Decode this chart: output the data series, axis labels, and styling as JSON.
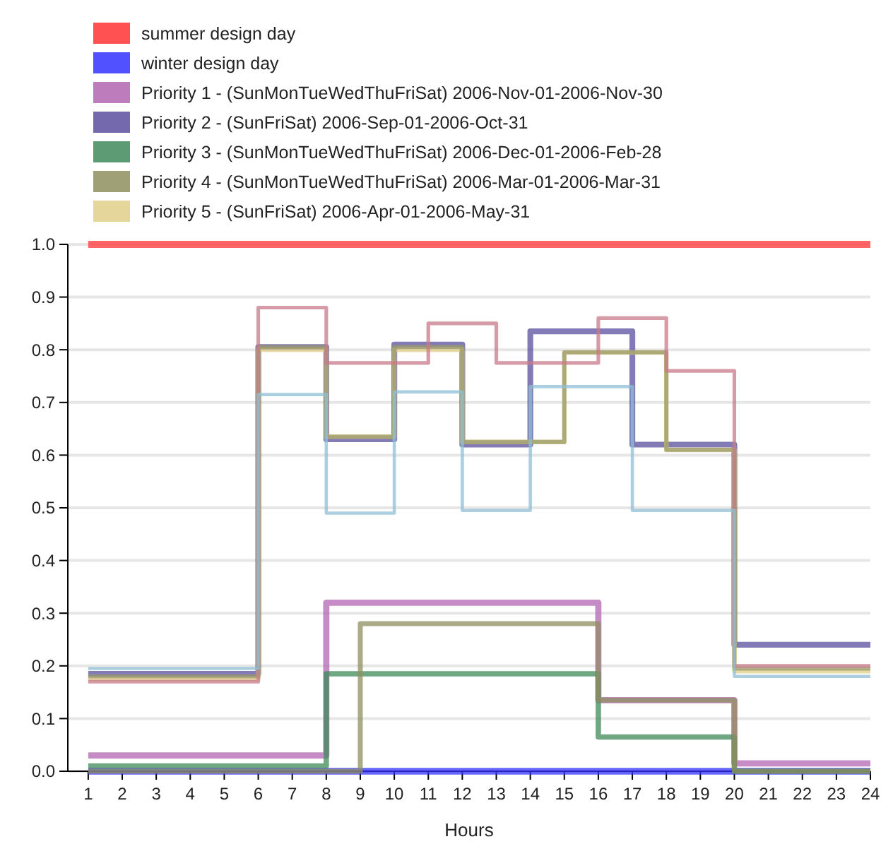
{
  "chart_data": {
    "type": "step",
    "xlabel": "Hours",
    "xlim": [
      0.4,
      24
    ],
    "xticks": [
      1,
      2,
      3,
      4,
      5,
      6,
      7,
      8,
      9,
      10,
      11,
      12,
      13,
      14,
      15,
      16,
      17,
      18,
      19,
      20,
      21,
      22,
      23,
      24
    ],
    "ylim": [
      0,
      1
    ],
    "yticks": [
      {
        "value": 0,
        "label": "0.0"
      },
      {
        "value": 0.1,
        "label": "0.1"
      },
      {
        "value": 0.2,
        "label": "0.2"
      },
      {
        "value": 0.3,
        "label": "0.3"
      },
      {
        "value": 0.4,
        "label": "0.4"
      },
      {
        "value": 0.5,
        "label": "0.5"
      },
      {
        "value": 0.6,
        "label": "0.6"
      },
      {
        "value": 0.7,
        "label": "0.7"
      },
      {
        "value": 0.8,
        "label": "0.8"
      },
      {
        "value": 0.9,
        "label": "0.9"
      },
      {
        "value": 1,
        "label": "1.0"
      }
    ],
    "grid": "y",
    "legend": "top left",
    "line_style": "solid",
    "series": [
      {
        "name": "summer design day",
        "color": "#ff3333",
        "x": [
          1,
          24
        ],
        "values": [
          1,
          1
        ]
      },
      {
        "name": "winter design day",
        "color": "#3333ff",
        "x": [
          1,
          24
        ],
        "values": [
          0,
          0
        ]
      },
      {
        "name": "Priority 1 - (SunMonTueWedThuFriSat) 2006-Nov-01-2006-Nov-30",
        "color": "#b266b2",
        "x": [
          1,
          8,
          16,
          20,
          24
        ],
        "values": [
          0.03,
          0.32,
          0.135,
          0.015,
          0.015
        ]
      },
      {
        "name": "Priority 2 - (SunFriSat) 2006-Sep-01-2006-Oct-31",
        "color": "#5a4f9e",
        "x": [
          1,
          6,
          8,
          10,
          12,
          14,
          17,
          20,
          24
        ],
        "values": [
          0.185,
          0.805,
          0.63,
          0.81,
          0.62,
          0.835,
          0.62,
          0.24,
          0.24
        ]
      },
      {
        "name": "Priority 3 - (SunMonTueWedThuFriSat) 2006-Dec-01-2006-Feb-28",
        "color": "#3f8a5a",
        "x": [
          1,
          8,
          16,
          20,
          24
        ],
        "values": [
          0.01,
          0.185,
          0.065,
          0,
          0
        ]
      },
      {
        "name": "Priority 4 - (SunMonTueWedThuFriSat) 2006-Mar-01-2006-Mar-31",
        "color": "#8f8f5f",
        "x": [
          1,
          9,
          16,
          20,
          24
        ],
        "values": [
          0,
          0.28,
          0.135,
          0,
          0
        ]
      },
      {
        "name": "Priority 5 - (SunFriSat) 2006-Apr-01-2006-May-31",
        "color": "#e0cf8a",
        "x": [
          1,
          6,
          8,
          10,
          12,
          15,
          18,
          20,
          24
        ],
        "values": [
          0.175,
          0.8,
          0.635,
          0.8,
          0.625,
          0.795,
          0.61,
          0.19,
          0.19
        ]
      },
      {
        "color": "#9a9a6a",
        "x": [
          1,
          6,
          8,
          10,
          12,
          15,
          18,
          20,
          24
        ],
        "values": [
          0.18,
          0.805,
          0.635,
          0.805,
          0.625,
          0.795,
          0.61,
          0.195,
          0.195
        ]
      },
      {
        "color": "#c87a8a",
        "x": [
          1,
          6,
          8,
          11,
          13,
          16,
          18,
          20,
          24
        ],
        "values": [
          0.17,
          0.88,
          0.775,
          0.85,
          0.775,
          0.86,
          0.76,
          0.2,
          0.2
        ]
      },
      {
        "color": "#8fbfd6",
        "x": [
          1,
          6,
          8,
          10,
          12,
          14,
          17,
          20,
          24
        ],
        "values": [
          0.195,
          0.715,
          0.49,
          0.72,
          0.495,
          0.73,
          0.495,
          0.18,
          0.18
        ]
      }
    ]
  }
}
